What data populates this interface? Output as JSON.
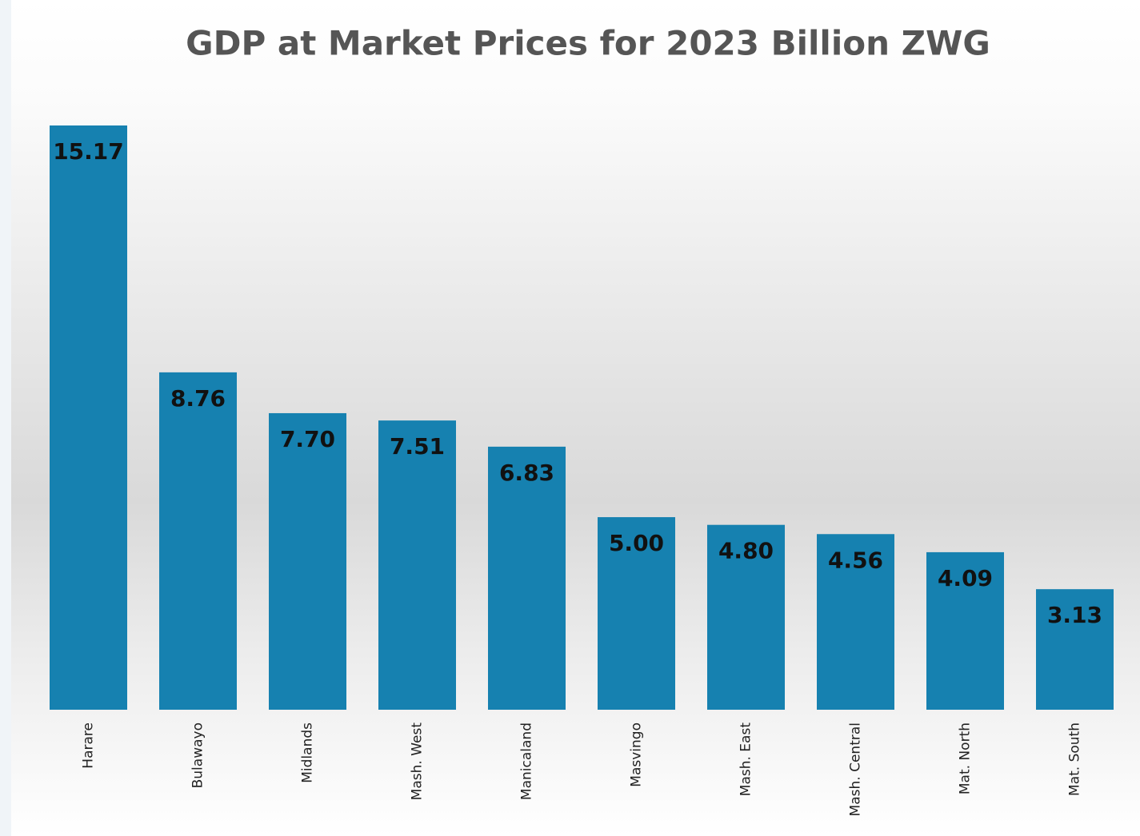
{
  "chart_data": {
    "type": "bar",
    "title": "GDP at Market Prices for 2023 Billion  ZWG",
    "categories": [
      "Harare",
      "Bulawayo",
      "Midlands",
      "Mash. West",
      "Manicaland",
      "Masvingo",
      "Mash. East",
      "Mash. Central",
      "Mat. North",
      "Mat. South"
    ],
    "values": [
      15.17,
      8.76,
      7.7,
      7.51,
      6.83,
      5,
      4.8,
      4.56,
      4.09,
      3.13
    ],
    "value_labels": [
      "15.17",
      "8.76",
      "7.70",
      "7.51",
      "6.83",
      "5.00",
      "4.80",
      "4.56",
      "4.09",
      "3.13"
    ],
    "color": "#1681b0"
  }
}
